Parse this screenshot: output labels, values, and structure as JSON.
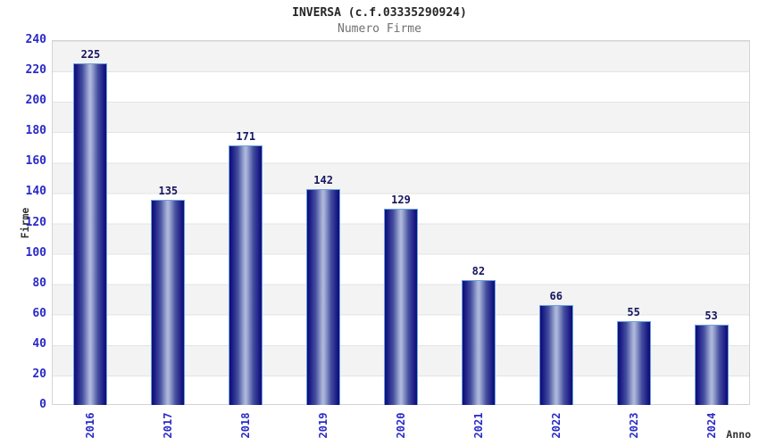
{
  "chart_data": {
    "type": "bar",
    "title": "INVERSA (c.f.03335290924)",
    "subtitle": "Numero Firme",
    "xlabel": "Anno",
    "ylabel": "Firme",
    "categories": [
      "2016",
      "2017",
      "2018",
      "2019",
      "2020",
      "2021",
      "2022",
      "2023",
      "2024"
    ],
    "values": [
      225,
      135,
      171,
      142,
      129,
      82,
      66,
      55,
      53
    ],
    "ylim": [
      0,
      240
    ],
    "ytick_step": 20,
    "y_ticks": [
      0,
      20,
      40,
      60,
      80,
      100,
      120,
      140,
      160,
      180,
      200,
      220,
      240
    ],
    "grid": "horizontal-bands-alternating",
    "legend": "none",
    "colors": {
      "bar_edge_dark": "#0e0e74",
      "bar_mid": "#444e9e",
      "bar_center_light": "#b2badd",
      "bar_outline": "#6aa2e2",
      "tick_label_blue": "#2a2ac8",
      "value_label_navy": "#15155f",
      "band_gray": "#f3f3f3",
      "grid_line": "#e3e3e3",
      "title_color": "#262626",
      "subtitle_color": "#707070",
      "axis_title_color": "#333333",
      "plot_border": "#d4d4d4",
      "background": "#ffffff"
    }
  }
}
